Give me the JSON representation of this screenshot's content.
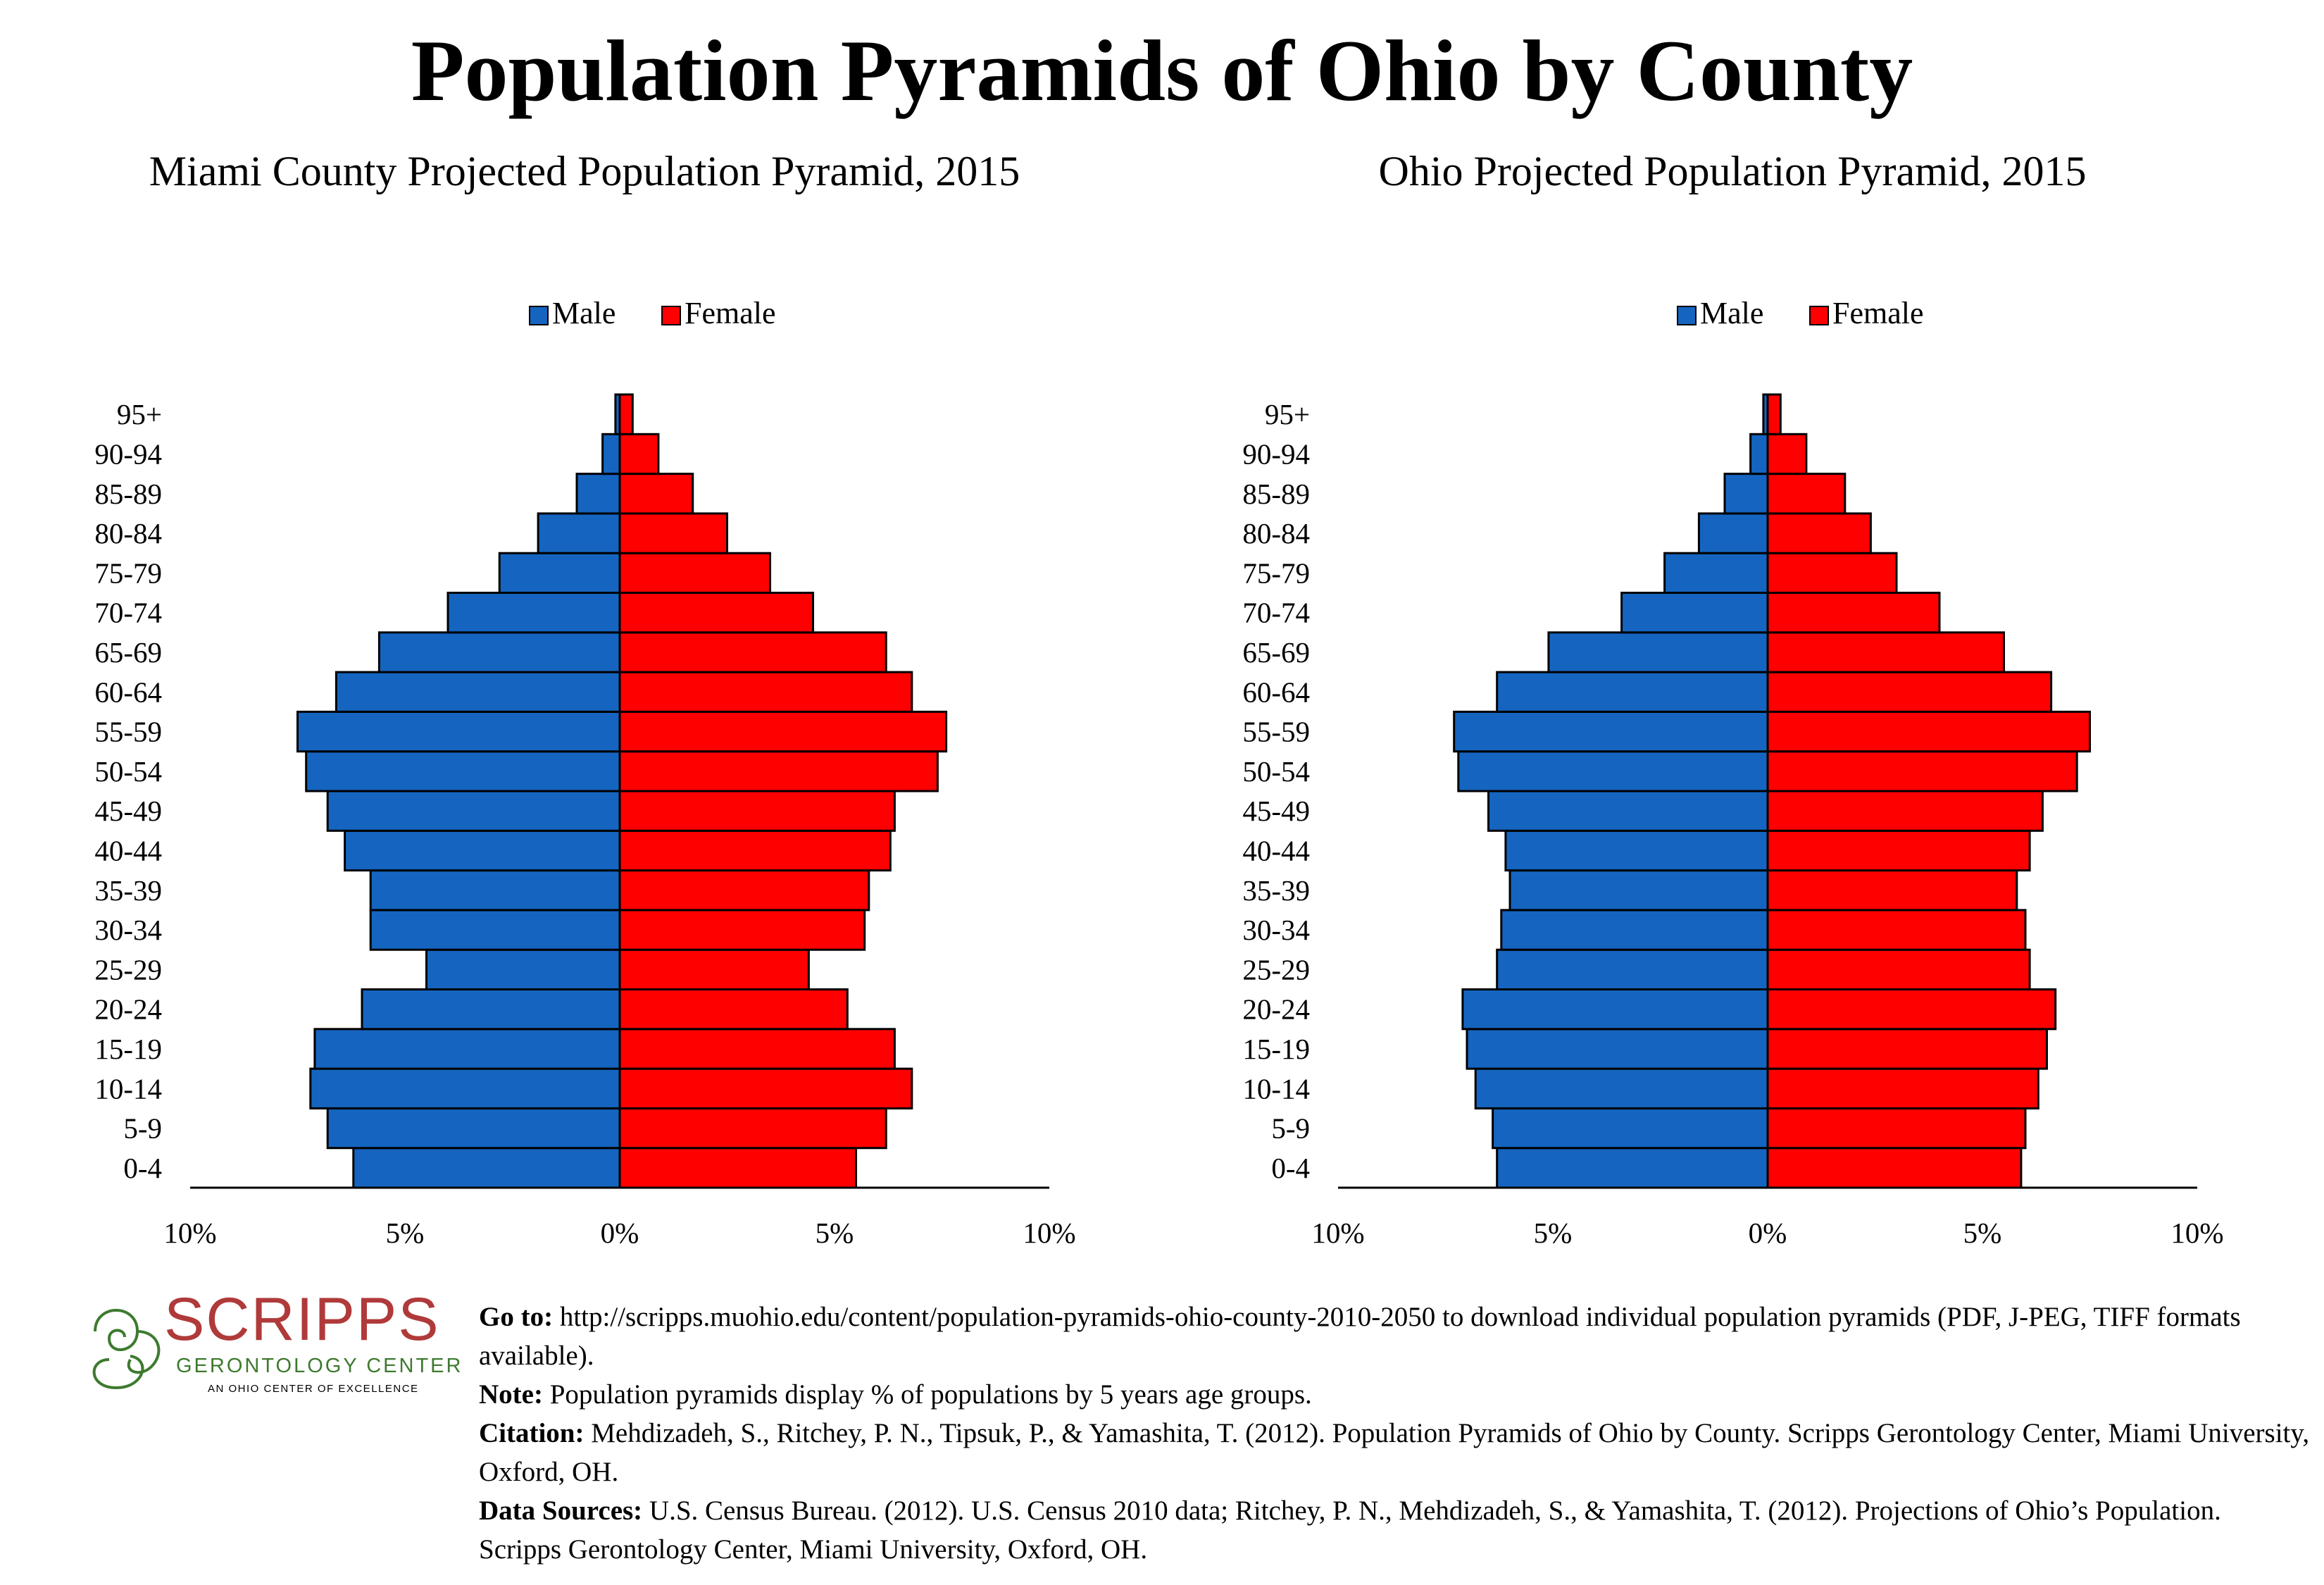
{
  "title": "Population Pyramids of Ohio by County",
  "colors": {
    "male": "#1565c0",
    "female": "#ff0000"
  },
  "chart_data": [
    {
      "type": "bar",
      "title": "Miami County Projected Population Pyramid, 2015",
      "orientation": "horizontal-pyramid",
      "categories": [
        "0-4",
        "5-9",
        "10-14",
        "15-19",
        "20-24",
        "25-29",
        "30-34",
        "35-39",
        "40-44",
        "45-49",
        "50-54",
        "55-59",
        "60-64",
        "65-69",
        "70-74",
        "75-79",
        "80-84",
        "85-89",
        "90-94",
        "95+"
      ],
      "series": [
        {
          "name": "Male",
          "values": [
            6.2,
            6.8,
            7.2,
            7.1,
            6.0,
            4.5,
            5.8,
            5.8,
            6.4,
            6.8,
            7.3,
            7.5,
            6.6,
            5.6,
            4.0,
            2.8,
            1.9,
            1.0,
            0.4,
            0.1
          ]
        },
        {
          "name": "Female",
          "values": [
            5.5,
            6.2,
            6.8,
            6.4,
            5.3,
            4.4,
            5.7,
            5.8,
            6.3,
            6.4,
            7.4,
            7.6,
            6.8,
            6.2,
            4.5,
            3.5,
            2.5,
            1.7,
            0.9,
            0.3
          ]
        }
      ],
      "legend": {
        "position": "top-center",
        "items": [
          "Male",
          "Female"
        ]
      },
      "xlim": [
        -10,
        10
      ],
      "xticks": [
        "10%",
        "5%",
        "0%",
        "5%",
        "10%"
      ],
      "grid": false
    },
    {
      "type": "bar",
      "title": "Ohio Projected Population Pyramid, 2015",
      "orientation": "horizontal-pyramid",
      "categories": [
        "0-4",
        "5-9",
        "10-14",
        "15-19",
        "20-24",
        "25-29",
        "30-34",
        "35-39",
        "40-44",
        "45-49",
        "50-54",
        "55-59",
        "60-64",
        "65-69",
        "70-74",
        "75-79",
        "80-84",
        "85-89",
        "90-94",
        "95+"
      ],
      "series": [
        {
          "name": "Male",
          "values": [
            6.3,
            6.4,
            6.8,
            7.0,
            7.1,
            6.3,
            6.2,
            6.0,
            6.1,
            6.5,
            7.2,
            7.3,
            6.3,
            5.1,
            3.4,
            2.4,
            1.6,
            1.0,
            0.4,
            0.1
          ]
        },
        {
          "name": "Female",
          "values": [
            5.9,
            6.0,
            6.3,
            6.5,
            6.7,
            6.1,
            6.0,
            5.8,
            6.1,
            6.4,
            7.2,
            7.5,
            6.6,
            5.5,
            4.0,
            3.0,
            2.4,
            1.8,
            0.9,
            0.3
          ]
        }
      ],
      "legend": {
        "position": "top-center",
        "items": [
          "Male",
          "Female"
        ]
      },
      "xlim": [
        -10,
        10
      ],
      "xticks": [
        "10%",
        "5%",
        "0%",
        "5%",
        "10%"
      ],
      "grid": false
    }
  ],
  "logo": {
    "name": "SCRIPPS",
    "subtitle": "GERONTOLOGY CENTER",
    "tagline": "AN OHIO CENTER OF EXCELLENCE",
    "colors": {
      "name": "#b03a3a",
      "subtitle": "#3d7a2e",
      "swirl": "#3d7a2e"
    }
  },
  "footnotes": [
    {
      "label": "Go to:",
      "text": " http://scripps.muohio.edu/content/population-pyramids-ohio-county-2010-2050 to download individual population pyramids (PDF, J-PEG, TIFF formats available)."
    },
    {
      "label": "Note:",
      "text": " Population pyramids display % of populations by 5 years age groups."
    },
    {
      "label": "Citation:",
      "text": " Mehdizadeh, S., Ritchey, P. N., Tipsuk, P., & Yamashita, T. (2012). Population Pyramids of Ohio by County. Scripps Gerontology Center, Miami University, Oxford, OH."
    },
    {
      "label": "Data Sources:",
      "text": " U.S. Census Bureau. (2012). U.S. Census 2010 data; Ritchey, P. N., Mehdizadeh, S., & Yamashita, T. (2012). Projections of Ohio’s Population. Scripps Gerontology Center, Miami University, Oxford, OH."
    }
  ]
}
